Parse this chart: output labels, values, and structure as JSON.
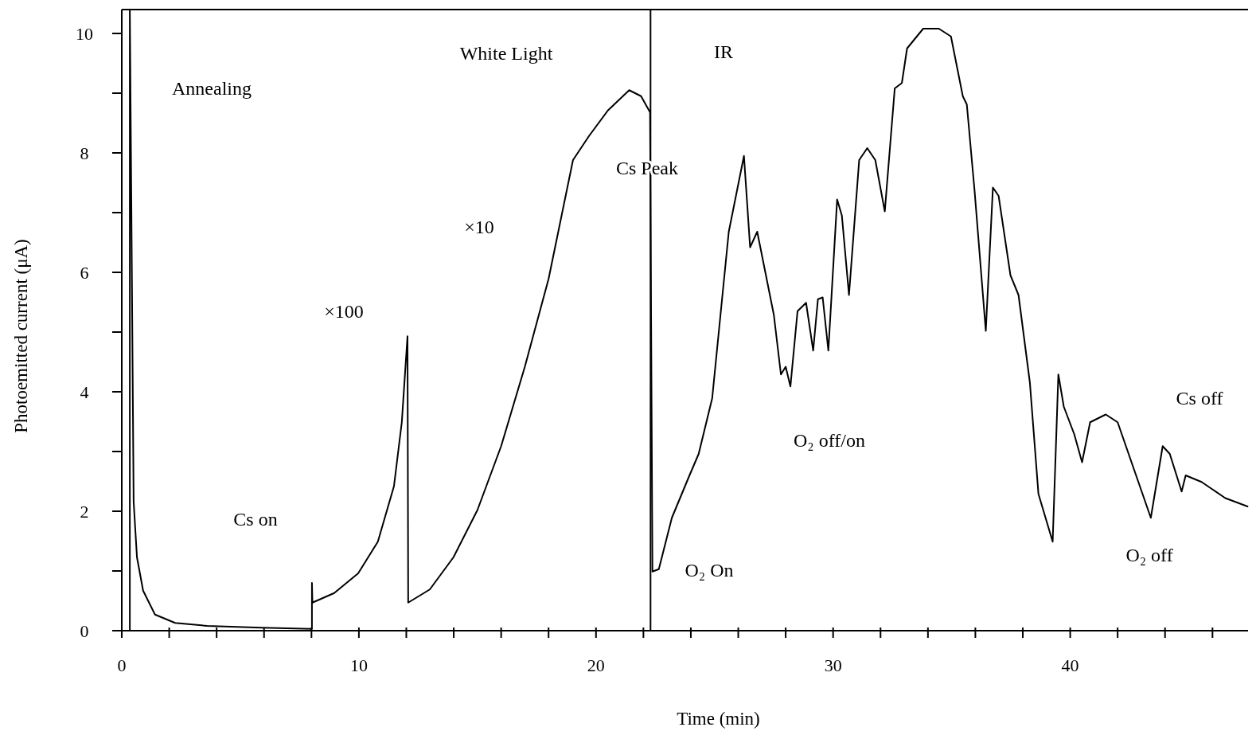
{
  "chart_data": {
    "type": "line",
    "xlabel": "Time (min)",
    "ylabel": "Photoemitted current (μA)",
    "xlim": [
      0,
      47.5
    ],
    "ylim": [
      0,
      10.4
    ],
    "xticks": [
      0,
      {
        "value": 2,
        "label": null
      },
      {
        "value": 4,
        "label": null
      },
      {
        "value": 6,
        "label": null
      },
      {
        "value": 8,
        "label": null
      },
      10,
      {
        "value": 12,
        "label": null
      },
      {
        "value": 14,
        "label": null
      },
      {
        "value": 16,
        "label": null
      },
      {
        "value": 18,
        "label": null
      },
      20,
      {
        "value": 22,
        "label": null
      },
      {
        "value": 24,
        "label": null
      },
      {
        "value": 26,
        "label": null
      },
      {
        "value": 28,
        "label": null
      },
      30,
      {
        "value": 32,
        "label": null
      },
      {
        "value": 34,
        "label": null
      },
      {
        "value": 36,
        "label": null
      },
      {
        "value": 38,
        "label": null
      },
      40,
      {
        "value": 42,
        "label": null
      },
      {
        "value": 44,
        "label": null
      },
      {
        "value": 46,
        "label": null
      }
    ],
    "yticks": [
      0,
      {
        "value": 1,
        "label": null
      },
      2,
      {
        "value": 3,
        "label": null
      },
      4,
      {
        "value": 5,
        "label": null
      },
      6,
      {
        "value": 7,
        "label": null
      },
      8,
      {
        "value": 9,
        "label": null
      },
      10
    ],
    "grid": false,
    "marker": "none",
    "line_style": "solid",
    "ref_lines": [
      {
        "axis": "x",
        "value": 22.3,
        "label": null,
        "color": "#000000"
      }
    ],
    "series": [
      {
        "color": "#000000",
        "x": [
          0.34,
          0.34,
          0.5,
          0.64,
          0.9,
          1.4,
          2.25,
          3.6,
          5.9,
          8.02,
          8.02,
          8.04,
          8.96,
          9.97,
          10.8,
          11.48,
          11.81,
          12.05,
          12.08,
          12.99,
          13.99,
          15.0,
          16.0,
          17.0,
          18.0,
          19.03,
          19.7,
          20.5,
          21.4,
          21.9,
          22.28,
          22.38,
          22.65,
          23.2,
          23.9,
          24.33,
          24.9,
          25.6,
          26.24,
          26.5,
          26.8,
          27.5,
          27.8,
          28.0,
          28.2,
          28.5,
          28.86,
          29.16,
          29.36,
          29.56,
          29.8,
          30.17,
          30.37,
          30.67,
          31.1,
          31.44,
          31.78,
          32.18,
          32.6,
          32.9,
          33.12,
          33.8,
          34.46,
          34.97,
          35.47,
          35.64,
          35.97,
          36.44,
          36.74,
          36.98,
          37.48,
          37.82,
          38.3,
          38.66,
          39.26,
          39.5,
          39.73,
          40.17,
          40.5,
          40.84,
          41.5,
          42.0,
          42.7,
          43.4,
          43.9,
          44.2,
          44.7,
          44.87,
          45.54,
          46.54,
          47.48
        ],
        "values": [
          0,
          10.39,
          2.16,
          1.23,
          0.67,
          0.27,
          0.13,
          0.08,
          0.05,
          0.03,
          0.8,
          0.47,
          0.63,
          0.96,
          1.49,
          2.42,
          3.49,
          4.93,
          0.47,
          0.69,
          1.23,
          2.02,
          3.09,
          4.42,
          5.89,
          7.88,
          8.28,
          8.71,
          9.05,
          8.95,
          8.68,
          0.99,
          1.03,
          1.89,
          2.56,
          2.96,
          3.89,
          6.68,
          7.95,
          6.42,
          6.68,
          5.29,
          4.29,
          4.42,
          4.09,
          5.35,
          5.49,
          4.69,
          5.55,
          5.58,
          4.69,
          7.22,
          6.95,
          5.62,
          7.88,
          8.08,
          7.88,
          7.02,
          9.08,
          9.17,
          9.75,
          10.08,
          10.08,
          9.95,
          8.95,
          8.81,
          7.35,
          5.02,
          7.42,
          7.28,
          5.95,
          5.62,
          4.15,
          2.29,
          1.49,
          4.29,
          3.75,
          3.29,
          2.82,
          3.49,
          3.62,
          3.49,
          2.69,
          1.89,
          3.09,
          2.96,
          2.33,
          2.6,
          2.49,
          2.22,
          2.08
        ]
      }
    ],
    "annotations": [
      "Annealing",
      "White Light",
      "IR",
      "Cs Peak",
      "×10",
      "×100",
      "Cs on",
      "O₂ On",
      "O₂ off/on",
      "O₂ off",
      "Cs off"
    ]
  }
}
